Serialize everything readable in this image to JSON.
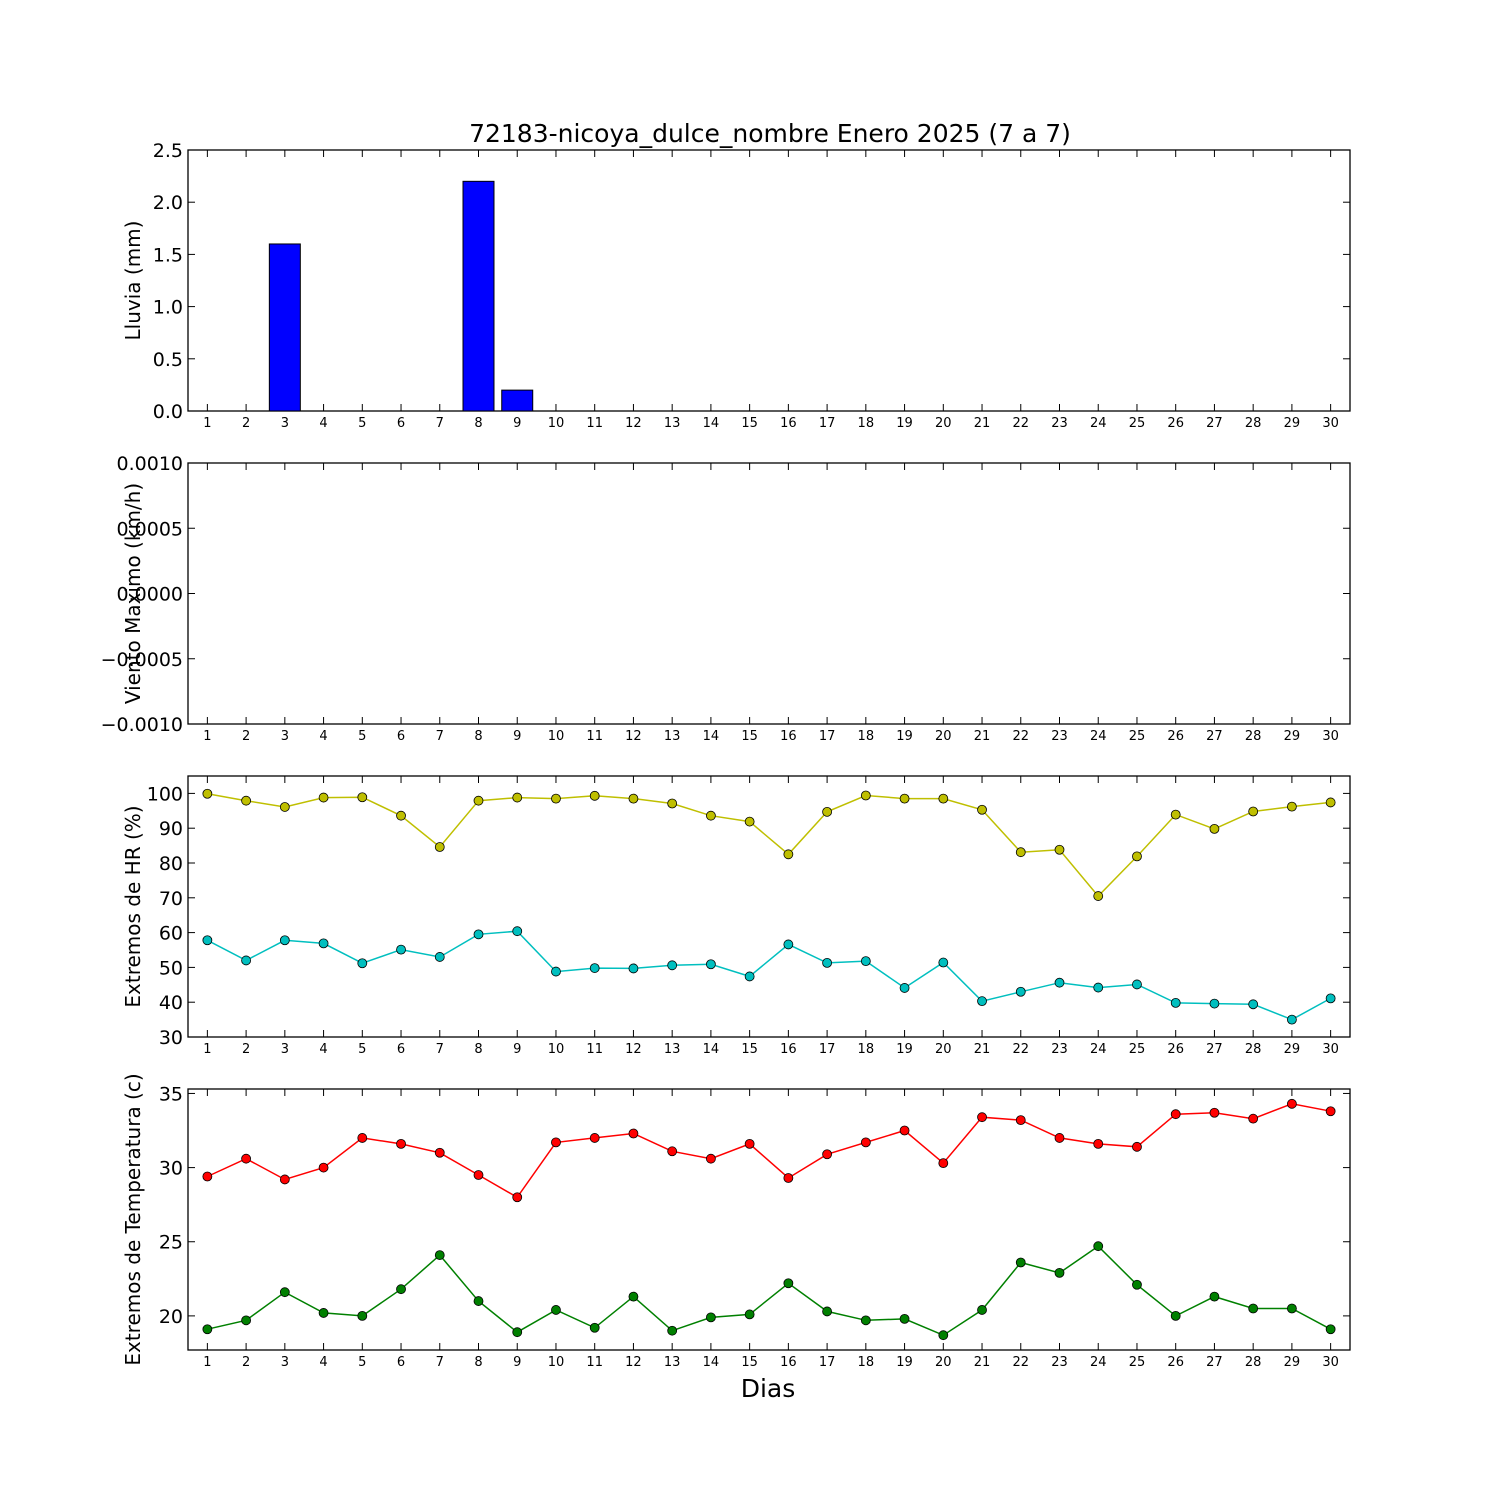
{
  "figure": {
    "title": "72183-nicoya_dulce_nombre Enero 2025  (7 a 7)",
    "xlabel": "Dias"
  },
  "chart_data": [
    {
      "type": "bar",
      "ylabel": "Lluvia (mm)",
      "ylim": [
        0,
        2.5
      ],
      "yticks": [
        0.0,
        0.5,
        1.0,
        1.5,
        2.0,
        2.5
      ],
      "ytick_labels": [
        "0.0",
        "0.5",
        "1.0",
        "1.5",
        "2.0",
        "2.5"
      ],
      "categories": [
        1,
        2,
        3,
        4,
        5,
        6,
        7,
        8,
        9,
        10,
        11,
        12,
        13,
        14,
        15,
        16,
        17,
        18,
        19,
        20,
        21,
        22,
        23,
        24,
        25,
        26,
        27,
        28,
        29,
        30
      ],
      "series": [
        {
          "color": "#0000ff",
          "values": [
            0,
            0,
            1.6,
            0,
            0,
            0,
            0,
            2.2,
            0.2,
            0,
            0,
            0,
            0,
            0,
            0,
            0,
            0,
            0,
            0,
            0,
            0,
            0,
            0,
            0,
            0,
            0,
            0,
            0,
            0,
            0
          ]
        }
      ]
    },
    {
      "type": "line",
      "ylabel": "Viento Maximo (km/h)",
      "ylim": [
        -0.001,
        0.001
      ],
      "yticks": [
        -0.001,
        -0.0005,
        0,
        0.0005,
        0.001
      ],
      "ytick_labels": [
        "−0.0010",
        "−0.0005",
        "0.0000",
        "0.0005",
        "0.0010"
      ],
      "categories": [
        1,
        2,
        3,
        4,
        5,
        6,
        7,
        8,
        9,
        10,
        11,
        12,
        13,
        14,
        15,
        16,
        17,
        18,
        19,
        20,
        21,
        22,
        23,
        24,
        25,
        26,
        27,
        28,
        29,
        30
      ],
      "series": []
    },
    {
      "type": "line",
      "ylabel": "Extremos de HR (%)",
      "ylim": [
        30,
        105
      ],
      "yticks": [
        30,
        40,
        50,
        60,
        70,
        80,
        90,
        100
      ],
      "ytick_labels": [
        "30",
        "40",
        "50",
        "60",
        "70",
        "80",
        "90",
        "100"
      ],
      "categories": [
        1,
        2,
        3,
        4,
        5,
        6,
        7,
        8,
        9,
        10,
        11,
        12,
        13,
        14,
        15,
        16,
        17,
        18,
        19,
        20,
        21,
        22,
        23,
        24,
        25,
        26,
        27,
        28,
        29,
        30
      ],
      "series": [
        {
          "color": "#bfbf00",
          "values": [
            99.9,
            97.9,
            96.1,
            98.8,
            98.9,
            93.6,
            84.6,
            97.9,
            98.8,
            98.5,
            99.3,
            98.5,
            97.1,
            93.6,
            91.9,
            82.5,
            94.7,
            99.4,
            98.5,
            98.5,
            95.3,
            83.1,
            83.8,
            70.5,
            81.9,
            93.9,
            89.8,
            94.8,
            96.2,
            97.4
          ]
        },
        {
          "color": "#00bfbf",
          "values": [
            57.8,
            52.0,
            57.8,
            56.9,
            51.2,
            55.1,
            53.0,
            59.5,
            60.4,
            48.8,
            49.8,
            49.7,
            50.6,
            50.9,
            47.4,
            56.6,
            51.3,
            51.8,
            44.1,
            51.4,
            40.3,
            43.0,
            45.6,
            44.2,
            45.1,
            39.8,
            39.6,
            39.4,
            35.0,
            41.1
          ]
        }
      ]
    },
    {
      "type": "line",
      "ylabel": "Extremos de Temperatura (c)",
      "ylim": [
        17.7,
        35.3
      ],
      "yticks": [
        20,
        25,
        30,
        35
      ],
      "ytick_labels": [
        "20",
        "25",
        "30",
        "35"
      ],
      "categories": [
        1,
        2,
        3,
        4,
        5,
        6,
        7,
        8,
        9,
        10,
        11,
        12,
        13,
        14,
        15,
        16,
        17,
        18,
        19,
        20,
        21,
        22,
        23,
        24,
        25,
        26,
        27,
        28,
        29,
        30
      ],
      "series": [
        {
          "color": "#ff0000",
          "values": [
            29.4,
            30.6,
            29.2,
            30.0,
            32.0,
            31.6,
            31.0,
            29.5,
            28.0,
            31.7,
            32.0,
            32.3,
            31.1,
            30.6,
            31.6,
            29.3,
            30.9,
            31.7,
            32.5,
            30.3,
            33.4,
            33.2,
            32.0,
            31.6,
            31.4,
            33.6,
            33.7,
            33.3,
            34.3,
            33.8
          ]
        },
        {
          "color": "#008000",
          "values": [
            19.1,
            19.7,
            21.6,
            20.2,
            20.0,
            21.8,
            24.1,
            21.0,
            18.9,
            20.4,
            19.2,
            21.3,
            19.0,
            19.9,
            20.1,
            22.2,
            20.3,
            19.7,
            19.8,
            18.7,
            20.4,
            23.6,
            22.9,
            24.7,
            22.1,
            20.0,
            21.3,
            20.5,
            20.5,
            19.1
          ]
        }
      ]
    }
  ]
}
